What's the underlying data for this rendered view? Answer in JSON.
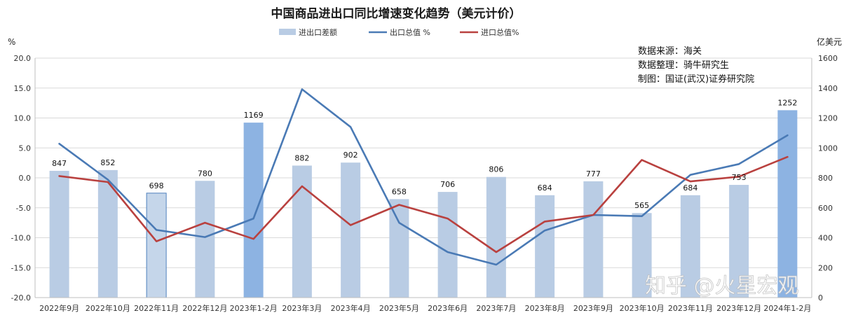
{
  "chart_data": {
    "type": "bar+line",
    "title": "中国商品进出口同比增速变化趋势（美元计价）",
    "left_axis": {
      "unit": "%",
      "min": -20,
      "max": 20,
      "step": 5,
      "ticks": [
        "20.0",
        "15.0",
        "10.0",
        "5.0",
        "0.0",
        "-5.0",
        "-10.0",
        "-15.0",
        "-20.0"
      ]
    },
    "right_axis": {
      "unit": "亿美元",
      "min": 0,
      "max": 1600,
      "step": 200,
      "ticks": [
        "1600",
        "1400",
        "1200",
        "1000",
        "800",
        "600",
        "400",
        "200",
        "0"
      ]
    },
    "categories": [
      "2022年9月",
      "2022年10月",
      "2022年11月",
      "2022年12月",
      "2023年1-2月",
      "2023年3月",
      "2023年4月",
      "2023年5月",
      "2023年6月",
      "2023年7月",
      "2023年8月",
      "2023年9月",
      "2023年10月",
      "2023年11月",
      "2023年12月",
      "2024年1-2月"
    ],
    "bar_series": {
      "name": "进出口差额",
      "axis": "right",
      "values": [
        847,
        852,
        698,
        780,
        1169,
        882,
        902,
        658,
        706,
        806,
        684,
        777,
        565,
        684,
        753,
        1252
      ],
      "color": "#b9cce4",
      "highlight_color": "#8db3e2",
      "highlight_indices": [
        4,
        15
      ],
      "outlined_index": 2
    },
    "line_series": [
      {
        "name": "出口总值 %",
        "axis": "left",
        "color": "#4a7ab5",
        "values": [
          5.7,
          -0.3,
          -8.7,
          -9.9,
          -6.8,
          14.8,
          8.5,
          -7.5,
          -12.4,
          -14.5,
          -8.8,
          -6.2,
          -6.4,
          0.5,
          2.3,
          7.1
        ]
      },
      {
        "name": "进口总值%",
        "axis": "left",
        "color": "#b9413f",
        "values": [
          0.3,
          -0.7,
          -10.6,
          -7.5,
          -10.2,
          -1.4,
          -7.9,
          -4.5,
          -6.8,
          -12.4,
          -7.3,
          -6.2,
          3.0,
          -0.6,
          0.2,
          3.5
        ]
      }
    ],
    "legend": {
      "position": "top",
      "entries": [
        "进出口差额",
        "出口总值 %",
        "进口总值%"
      ]
    },
    "grid": true,
    "source_note": [
      "数据来源：海关",
      "数据整理：骑牛研究生",
      "制图：国证(武汉)证券研究院"
    ],
    "watermark": "知乎 @火星宏观"
  }
}
